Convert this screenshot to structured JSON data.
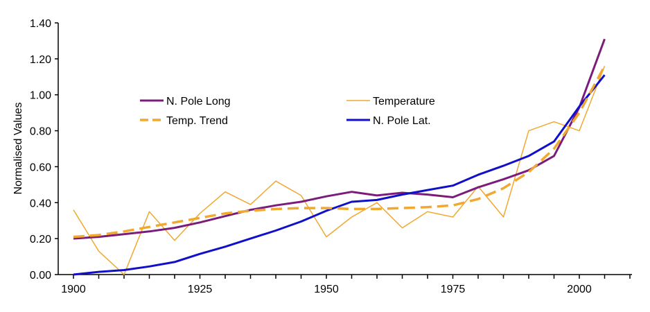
{
  "chart_data": {
    "type": "line",
    "title": "",
    "xlabel": "",
    "ylabel": "Normalised Values",
    "xlim": [
      1898,
      2011
    ],
    "ylim": [
      0,
      1.4
    ],
    "x_ticks": [
      1900,
      1925,
      1950,
      1975,
      2000
    ],
    "x_tick_labels": [
      "1900",
      "1925",
      "1950",
      "1975",
      "2000"
    ],
    "x_minor_step": 5,
    "y_ticks": [
      0,
      0.2,
      0.4,
      0.6,
      0.8,
      1.0,
      1.2,
      1.4
    ],
    "y_tick_labels": [
      "0.00",
      "0.20",
      "0.40",
      "0.60",
      "0.80",
      "1.00",
      "1.20",
      "1.40"
    ],
    "grid": false,
    "legend_position": "center-top",
    "series": [
      {
        "name": "N. Pole Long",
        "color": "#7b1c7b",
        "style": "solid",
        "width": 3,
        "x": [
          1900,
          1905,
          1910,
          1915,
          1920,
          1925,
          1930,
          1935,
          1940,
          1945,
          1950,
          1955,
          1960,
          1965,
          1970,
          1975,
          1980,
          1985,
          1990,
          1995,
          2000,
          2005
        ],
        "values": [
          0.2,
          0.21,
          0.225,
          0.24,
          0.26,
          0.29,
          0.325,
          0.36,
          0.385,
          0.405,
          0.435,
          0.46,
          0.44,
          0.455,
          0.445,
          0.43,
          0.485,
          0.53,
          0.58,
          0.66,
          0.93,
          1.31
        ]
      },
      {
        "name": "Temperature",
        "color": "#f0a830",
        "style": "solid",
        "width": 1.5,
        "x": [
          1900,
          1905,
          1910,
          1915,
          1920,
          1925,
          1930,
          1935,
          1940,
          1945,
          1950,
          1955,
          1960,
          1965,
          1970,
          1975,
          1980,
          1985,
          1990,
          1995,
          2000,
          2005
        ],
        "values": [
          0.36,
          0.13,
          0.0,
          0.35,
          0.19,
          0.34,
          0.46,
          0.39,
          0.52,
          0.44,
          0.21,
          0.32,
          0.4,
          0.26,
          0.35,
          0.32,
          0.49,
          0.32,
          0.8,
          0.85,
          0.8,
          1.16
        ]
      },
      {
        "name": "Temp. Trend",
        "color": "#f0a830",
        "style": "dashed",
        "width": 3.5,
        "x": [
          1900,
          1905,
          1910,
          1915,
          1920,
          1925,
          1930,
          1935,
          1940,
          1945,
          1950,
          1955,
          1960,
          1965,
          1970,
          1975,
          1980,
          1985,
          1990,
          1995,
          2000,
          2005
        ],
        "values": [
          0.21,
          0.22,
          0.24,
          0.265,
          0.29,
          0.315,
          0.34,
          0.355,
          0.365,
          0.37,
          0.37,
          0.365,
          0.365,
          0.37,
          0.375,
          0.385,
          0.42,
          0.48,
          0.57,
          0.7,
          0.9,
          1.16
        ]
      },
      {
        "name": "N. Pole Lat.",
        "color": "#1010c8",
        "style": "solid",
        "width": 3,
        "x": [
          1900,
          1905,
          1910,
          1915,
          1920,
          1925,
          1930,
          1935,
          1940,
          1945,
          1950,
          1955,
          1960,
          1965,
          1970,
          1975,
          1980,
          1985,
          1990,
          1995,
          2000,
          2005
        ],
        "values": [
          0.0,
          0.015,
          0.025,
          0.045,
          0.07,
          0.115,
          0.155,
          0.2,
          0.245,
          0.295,
          0.355,
          0.405,
          0.415,
          0.445,
          0.47,
          0.495,
          0.555,
          0.605,
          0.66,
          0.74,
          0.935,
          1.11
        ]
      }
    ]
  }
}
